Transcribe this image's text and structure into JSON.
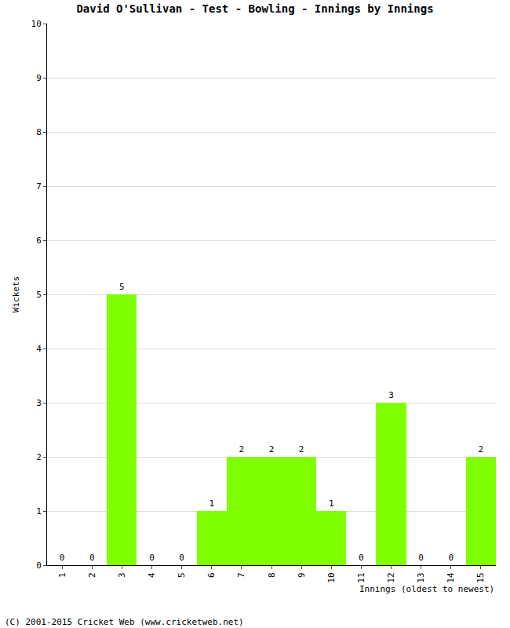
{
  "chart_data": {
    "type": "bar",
    "title": "David O'Sullivan - Test - Bowling - Innings by Innings",
    "x_label": "Innings (oldest to newest)",
    "y_label": "Wickets",
    "annotation": "(C) 2001-2015 Cricket Web (www.cricketweb.net)",
    "categories": [
      "1",
      "2",
      "3",
      "4",
      "5",
      "6",
      "7",
      "8",
      "9",
      "10",
      "11",
      "12",
      "13",
      "14",
      "15"
    ],
    "values": [
      0,
      0,
      5,
      0,
      0,
      1,
      2,
      2,
      2,
      1,
      0,
      3,
      0,
      0,
      2
    ],
    "color": "#80ff00",
    "ylim": [
      0,
      10
    ],
    "yticks": [
      0,
      1,
      2,
      3,
      4,
      5,
      6,
      7,
      8,
      9,
      10
    ],
    "grid": true,
    "data_labels": true
  }
}
